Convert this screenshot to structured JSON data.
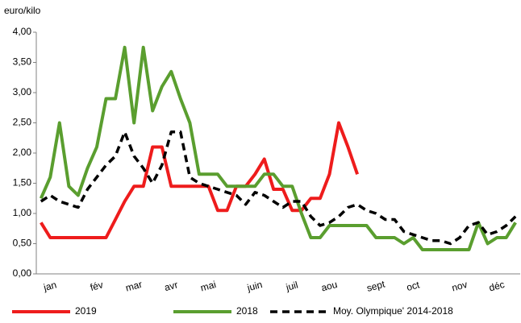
{
  "chart_data": {
    "type": "line",
    "y_label": "euro/kilo",
    "categories": [
      null,
      "jan",
      null,
      null,
      null,
      null,
      "fév",
      null,
      null,
      null,
      "mar",
      null,
      null,
      null,
      "avr",
      null,
      null,
      null,
      "mai",
      null,
      null,
      null,
      null,
      "juin",
      null,
      null,
      null,
      "juil",
      null,
      null,
      null,
      "aou",
      null,
      null,
      null,
      null,
      "sept",
      null,
      null,
      null,
      "oct",
      null,
      null,
      null,
      null,
      "nov",
      null,
      null,
      null,
      "déc",
      null,
      null
    ],
    "series": [
      {
        "name": "2019",
        "color": "#ee1c1c",
        "dash": false,
        "values": [
          0.85,
          0.6,
          0.6,
          0.6,
          0.6,
          0.6,
          0.6,
          0.6,
          0.9,
          1.2,
          1.45,
          1.45,
          2.1,
          2.1,
          1.45,
          1.45,
          1.45,
          1.45,
          1.45,
          1.05,
          1.05,
          1.45,
          1.45,
          1.65,
          1.9,
          1.4,
          1.4,
          1.05,
          1.05,
          1.25,
          1.25,
          1.65,
          2.5,
          2.1,
          1.65,
          null,
          null,
          null,
          null,
          null,
          null,
          null,
          null,
          null,
          null,
          null,
          null,
          null,
          null,
          null,
          null,
          null
        ]
      },
      {
        "name": "2018",
        "color": "#5a9e2f",
        "dash": false,
        "values": [
          1.25,
          1.6,
          2.5,
          1.45,
          1.3,
          1.75,
          2.1,
          2.9,
          2.9,
          3.75,
          2.5,
          3.75,
          2.7,
          3.1,
          3.35,
          2.9,
          2.5,
          1.65,
          1.65,
          1.65,
          1.45,
          1.45,
          1.45,
          1.45,
          1.65,
          1.65,
          1.45,
          1.45,
          1.0,
          0.6,
          0.6,
          0.8,
          0.8,
          0.8,
          0.8,
          0.8,
          0.6,
          0.6,
          0.6,
          0.5,
          0.6,
          0.4,
          0.4,
          0.4,
          0.4,
          0.4,
          0.4,
          0.85,
          0.5,
          0.6,
          0.6,
          0.85
        ]
      },
      {
        "name": "Moy. Olympique' 2014-2018",
        "color": "#000000",
        "dash": true,
        "values": [
          1.2,
          1.3,
          1.2,
          1.15,
          1.1,
          1.4,
          1.6,
          1.8,
          1.95,
          2.35,
          1.95,
          1.75,
          1.5,
          1.8,
          2.35,
          2.35,
          1.6,
          1.5,
          1.45,
          1.4,
          1.35,
          1.3,
          1.15,
          1.35,
          1.3,
          1.2,
          1.1,
          1.2,
          1.2,
          0.95,
          0.8,
          0.85,
          0.95,
          1.1,
          1.15,
          1.05,
          1.0,
          0.9,
          0.9,
          0.7,
          0.65,
          0.6,
          0.55,
          0.55,
          0.5,
          0.6,
          0.8,
          0.85,
          0.65,
          0.7,
          0.8,
          0.95
        ]
      }
    ],
    "ylim": [
      0,
      4
    ],
    "yticks": [
      {
        "value": 0,
        "label": "0,00"
      },
      {
        "value": 0.5,
        "label": "0,50"
      },
      {
        "value": 1,
        "label": "1,00"
      },
      {
        "value": 1.5,
        "label": "1,50"
      },
      {
        "value": 2,
        "label": "2,00"
      },
      {
        "value": 2.5,
        "label": "2,50"
      },
      {
        "value": 3,
        "label": "3,00"
      },
      {
        "value": 3.5,
        "label": "3,50"
      },
      {
        "value": 4,
        "label": "4,00"
      }
    ],
    "grid": false,
    "legend": "bottom"
  }
}
